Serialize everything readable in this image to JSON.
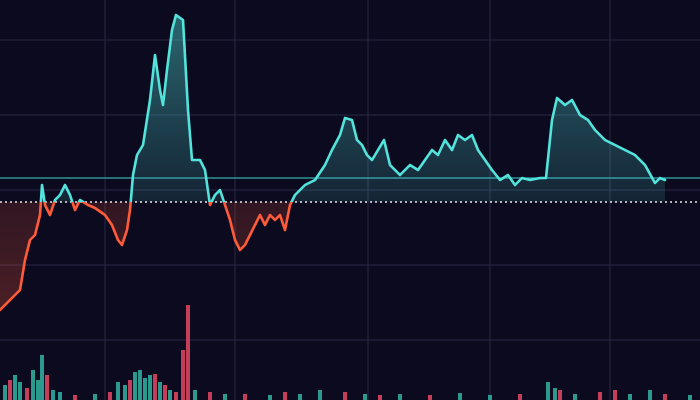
{
  "chart_data": [
    {
      "type": "line",
      "x": [
        0,
        10,
        20,
        25,
        30,
        35,
        40,
        42,
        45,
        50,
        55,
        60,
        65,
        70,
        75,
        80,
        88,
        95,
        105,
        112,
        118,
        122,
        127,
        130,
        133,
        137,
        143,
        150,
        155,
        160,
        163,
        167,
        172,
        176,
        183,
        188,
        192,
        200,
        205,
        210,
        215,
        220,
        225,
        230,
        235,
        240,
        245,
        250,
        255,
        260,
        265,
        270,
        275,
        280,
        285,
        290,
        295,
        305,
        315,
        325,
        332,
        340,
        345,
        352,
        357,
        362,
        367,
        372,
        378,
        384,
        390,
        395,
        400,
        410,
        418,
        425,
        432,
        438,
        445,
        452,
        458,
        465,
        472,
        478,
        485,
        492,
        500,
        508,
        515,
        522,
        530,
        540,
        546,
        552,
        557,
        565,
        572,
        580,
        588,
        595,
        605,
        615,
        625,
        635,
        645,
        655,
        660,
        665
      ],
      "values": [
        90,
        100,
        110,
        140,
        160,
        165,
        185,
        215,
        195,
        185,
        200,
        205,
        215,
        205,
        190,
        200,
        195,
        192,
        185,
        175,
        160,
        155,
        170,
        190,
        225,
        245,
        255,
        300,
        345,
        310,
        295,
        330,
        370,
        385,
        380,
        290,
        240,
        240,
        230,
        195,
        205,
        210,
        195,
        180,
        160,
        150,
        155,
        165,
        175,
        185,
        175,
        185,
        180,
        185,
        170,
        195,
        205,
        215,
        220,
        235,
        250,
        265,
        282,
        280,
        260,
        255,
        245,
        240,
        250,
        260,
        235,
        230,
        225,
        235,
        230,
        240,
        250,
        245,
        260,
        250,
        265,
        260,
        265,
        250,
        240,
        230,
        220,
        225,
        215,
        222,
        220,
        222,
        222,
        280,
        302,
        295,
        300,
        285,
        280,
        270,
        260,
        255,
        250,
        245,
        235,
        217,
        222,
        220
      ],
      "baseline": 198,
      "reference": 222,
      "color_above": "#52e3dc",
      "color_below": "#ff5b3a",
      "reference_color": "#3fc9c8",
      "baseline_color": "#ffffff",
      "xlim": [
        0,
        700
      ],
      "ylim": [
        0,
        400
      ],
      "xticks": [
        105,
        235,
        368,
        490,
        610
      ],
      "yticks": [
        60,
        135,
        210,
        285,
        360
      ],
      "grid": true
    },
    {
      "type": "bar",
      "x": [
        5,
        10,
        15,
        20,
        27,
        33,
        38,
        42,
        47,
        53,
        60,
        75,
        95,
        110,
        118,
        125,
        130,
        135,
        140,
        145,
        150,
        155,
        160,
        165,
        170,
        176,
        183,
        188,
        195,
        210,
        225,
        245,
        270,
        285,
        300,
        320,
        345,
        365,
        380,
        400,
        430,
        460,
        490,
        520,
        548,
        555,
        560,
        575,
        600,
        615,
        630,
        650,
        665,
        690
      ],
      "values": [
        15,
        20,
        25,
        18,
        12,
        30,
        20,
        45,
        25,
        10,
        8,
        5,
        6,
        8,
        18,
        15,
        20,
        28,
        30,
        22,
        25,
        26,
        18,
        15,
        10,
        8,
        50,
        95,
        10,
        8,
        6,
        6,
        5,
        8,
        6,
        10,
        8,
        6,
        5,
        6,
        5,
        7,
        5,
        6,
        18,
        12,
        10,
        6,
        8,
        10,
        6,
        10,
        6,
        5
      ],
      "colors": [
        "#2fa89a",
        "#d8435f",
        "#2fa89a",
        "#2fa89a",
        "#d8435f",
        "#2fa89a",
        "#2fa89a",
        "#2fa89a",
        "#d8435f",
        "#2fa89a",
        "#2fa89a",
        "#d8435f",
        "#2fa89a",
        "#d8435f",
        "#2fa89a",
        "#2fa89a",
        "#d8435f",
        "#2fa89a",
        "#2fa89a",
        "#2fa89a",
        "#2fa89a",
        "#d8435f",
        "#2fa89a",
        "#d8435f",
        "#2fa89a",
        "#d8435f",
        "#d8435f",
        "#d8435f",
        "#2fa89a",
        "#d8435f",
        "#2fa89a",
        "#d8435f",
        "#2fa89a",
        "#d8435f",
        "#2fa89a",
        "#2fa89a",
        "#d8435f",
        "#2fa89a",
        "#d8435f",
        "#2fa89a",
        "#d8435f",
        "#2fa89a",
        "#2fa89a",
        "#d8435f",
        "#2fa89a",
        "#2fa89a",
        "#d8435f",
        "#2fa89a",
        "#d8435f",
        "#d8435f",
        "#2fa89a",
        "#2fa89a",
        "#d8435f",
        "#2fa89a"
      ],
      "xlim": [
        0,
        700
      ],
      "ylim": [
        0,
        400
      ]
    }
  ]
}
